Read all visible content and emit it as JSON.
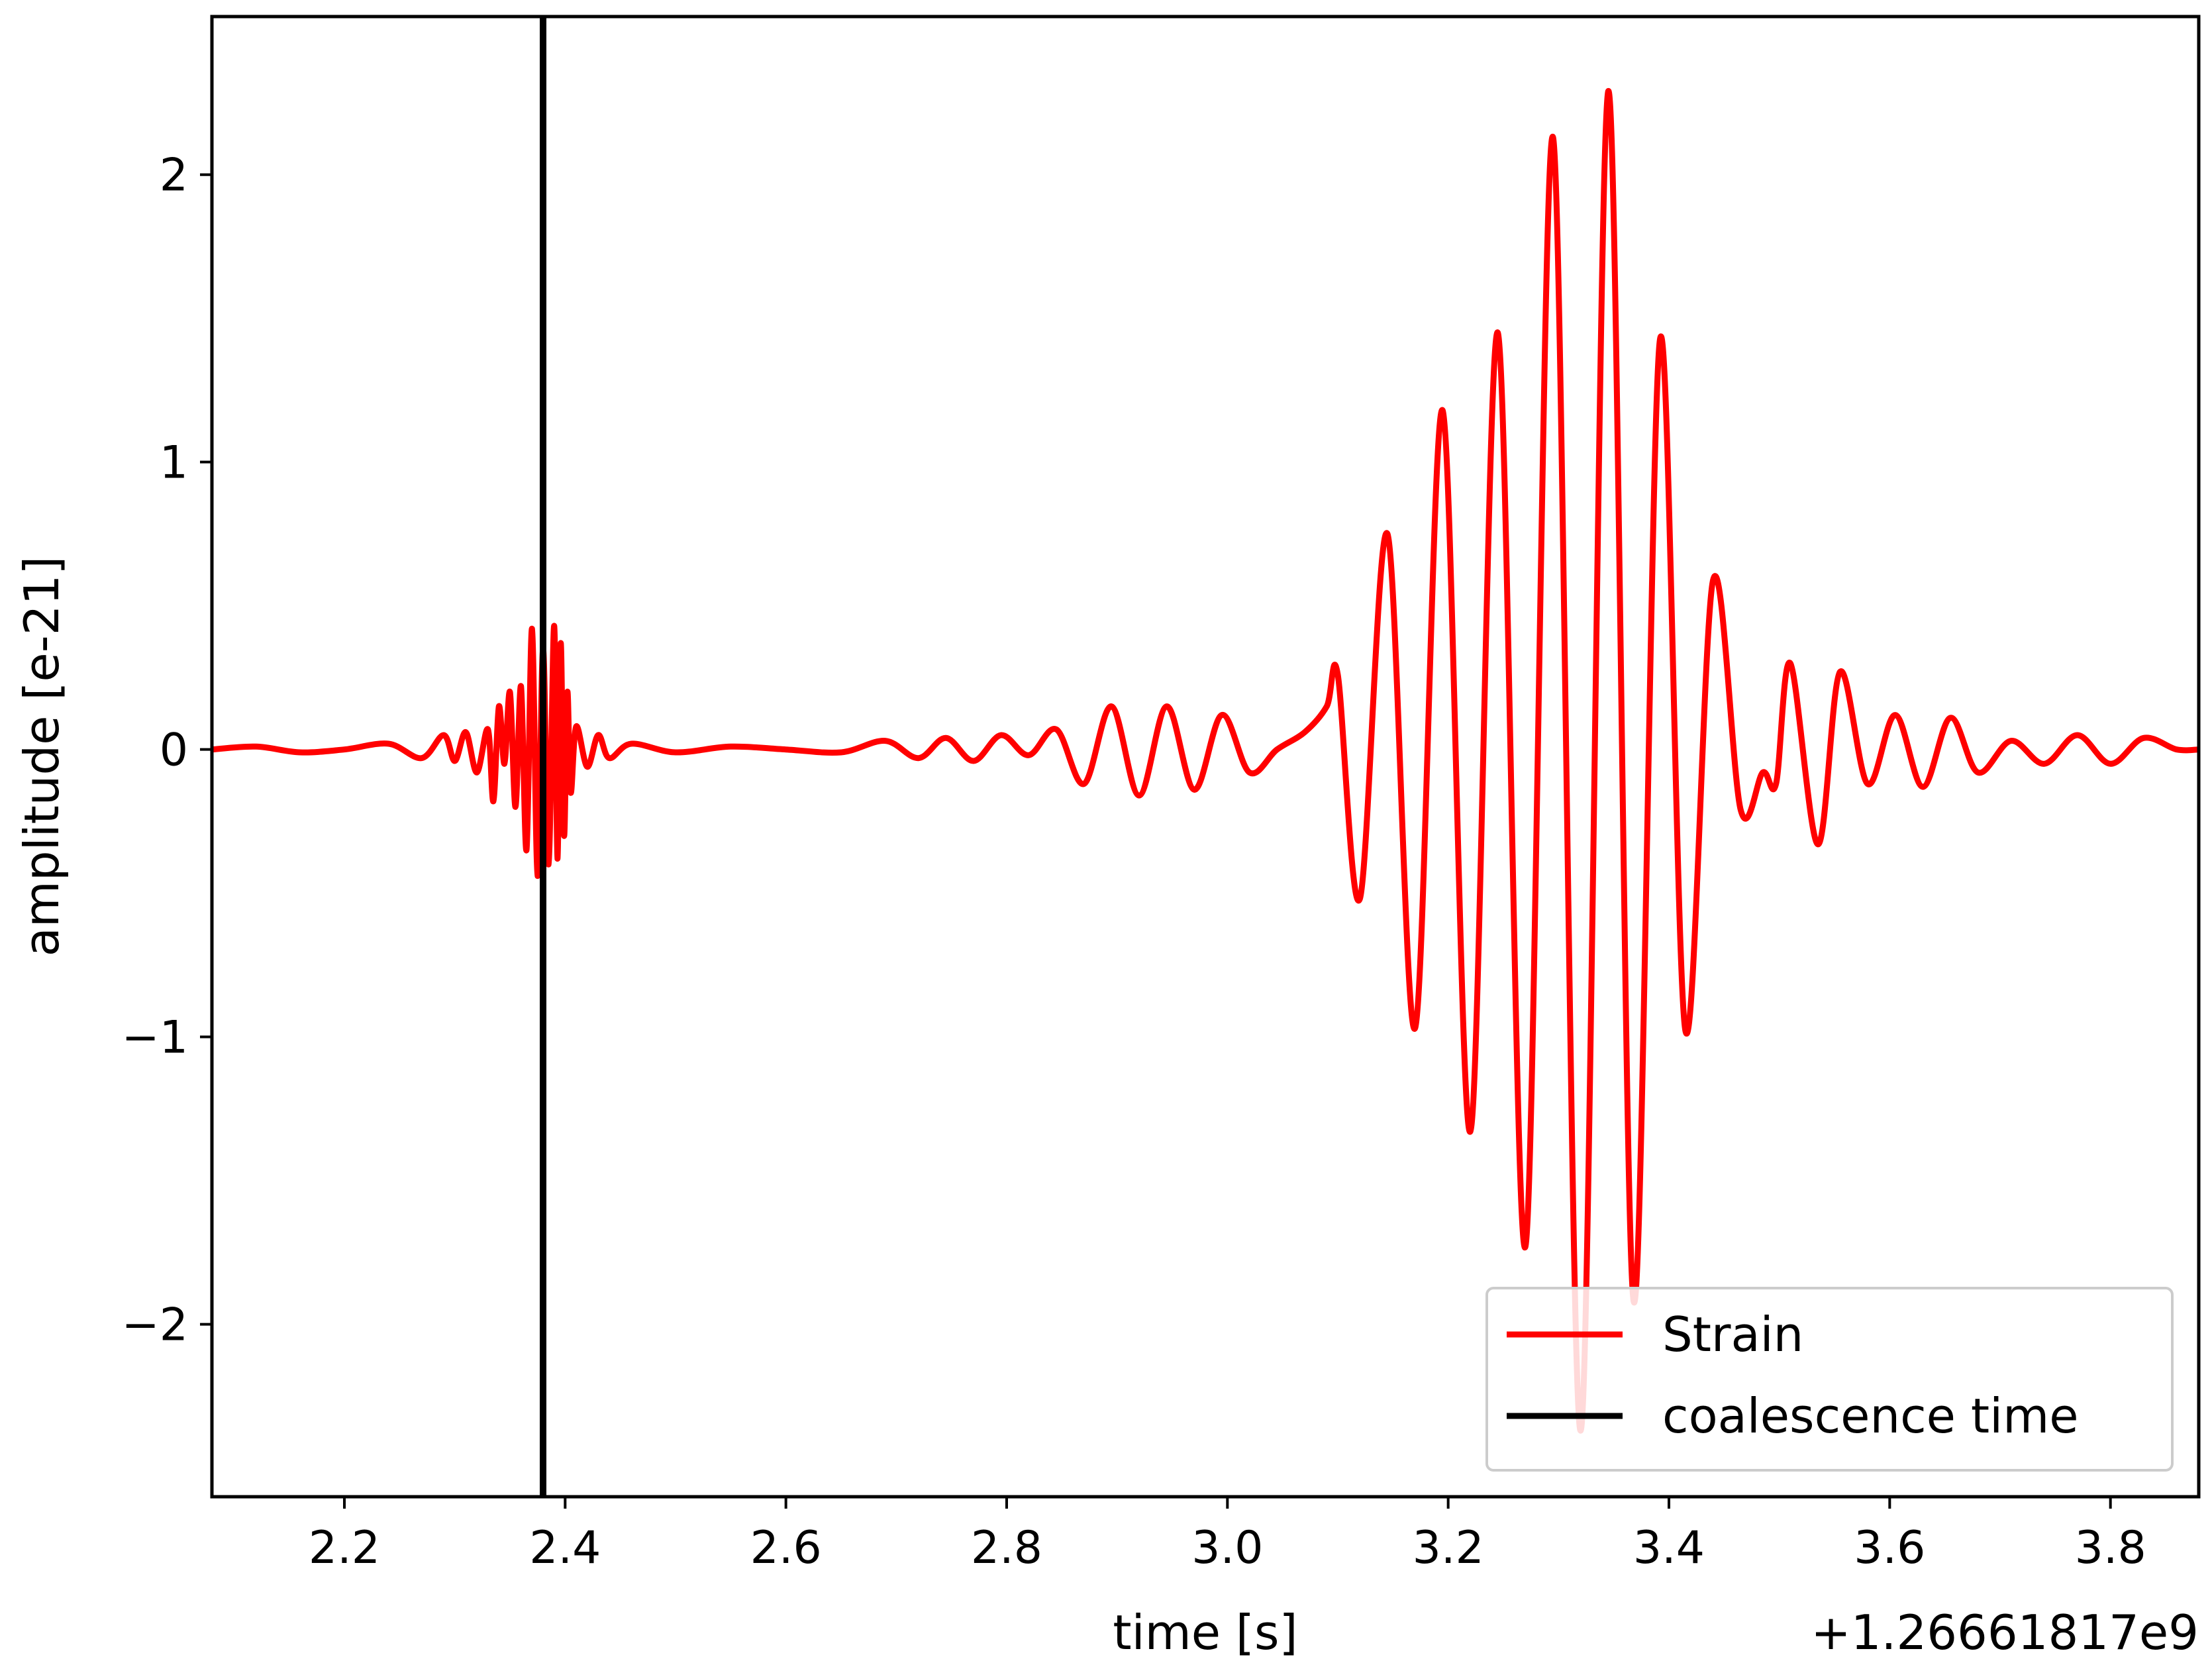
{
  "chart_data": {
    "type": "line",
    "xlabel": "time [s]",
    "ylabel": "amplitude [e-21]",
    "x_offset_label": "+1.26661817e9",
    "xlim": [
      2.08,
      3.88
    ],
    "ylim": [
      -2.6,
      2.55
    ],
    "x_ticks": [
      2.2,
      2.4,
      2.6,
      2.8,
      3.0,
      3.2,
      3.4,
      3.6,
      3.8
    ],
    "x_tick_labels": [
      "2.2",
      "2.4",
      "2.6",
      "2.8",
      "3.0",
      "3.2",
      "3.4",
      "3.6",
      "3.8"
    ],
    "y_ticks": [
      2,
      1,
      0,
      -1,
      -2
    ],
    "y_tick_labels": [
      "2",
      "1",
      "0",
      "−1",
      "−2"
    ],
    "grid": false,
    "legend_position": "bottom-right",
    "series": [
      {
        "name": "Strain",
        "color": "#ff0000",
        "x": [
          2.08,
          2.12,
          2.16,
          2.2,
          2.24,
          2.27,
          2.29,
          2.3,
          2.31,
          2.32,
          2.33,
          2.335,
          2.34,
          2.345,
          2.35,
          2.355,
          2.36,
          2.365,
          2.37,
          2.375,
          2.38,
          2.385,
          2.39,
          2.393,
          2.396,
          2.399,
          2.402,
          2.405,
          2.41,
          2.42,
          2.43,
          2.44,
          2.46,
          2.5,
          2.55,
          2.6,
          2.65,
          2.69,
          2.72,
          2.745,
          2.77,
          2.795,
          2.82,
          2.845,
          2.87,
          2.895,
          2.92,
          2.945,
          2.97,
          2.995,
          3.02,
          3.045,
          3.07,
          3.09,
          3.1,
          3.12,
          3.145,
          3.17,
          3.195,
          3.22,
          3.245,
          3.27,
          3.295,
          3.32,
          3.345,
          3.368,
          3.392,
          3.415,
          3.44,
          3.465,
          3.485,
          3.497,
          3.51,
          3.535,
          3.555,
          3.58,
          3.605,
          3.63,
          3.655,
          3.68,
          3.71,
          3.74,
          3.77,
          3.8,
          3.83,
          3.86,
          3.88
        ],
        "y": [
          0.0,
          0.01,
          -0.01,
          0.0,
          0.02,
          -0.03,
          0.05,
          -0.04,
          0.06,
          -0.08,
          0.07,
          -0.18,
          0.15,
          -0.05,
          0.2,
          -0.2,
          0.22,
          -0.35,
          0.42,
          -0.44,
          0.35,
          -0.4,
          0.43,
          -0.38,
          0.37,
          -0.3,
          0.2,
          -0.15,
          0.08,
          -0.06,
          0.05,
          -0.03,
          0.02,
          -0.01,
          0.01,
          0.0,
          -0.01,
          0.03,
          -0.03,
          0.04,
          -0.04,
          0.05,
          -0.02,
          0.07,
          -0.12,
          0.15,
          -0.16,
          0.15,
          -0.14,
          0.12,
          -0.08,
          0.0,
          0.06,
          0.15,
          0.26,
          -0.52,
          0.75,
          -0.97,
          1.18,
          -1.33,
          1.45,
          -1.73,
          2.13,
          -2.37,
          2.29,
          -1.92,
          1.43,
          -0.98,
          0.59,
          -0.21,
          -0.08,
          -0.12,
          0.3,
          -0.33,
          0.27,
          -0.12,
          0.12,
          -0.13,
          0.11,
          -0.08,
          0.03,
          -0.05,
          0.05,
          -0.05,
          0.04,
          0.0,
          0.0
        ]
      },
      {
        "name": "coalescence time",
        "color": "#000000",
        "x_value": 2.38
      }
    ]
  }
}
